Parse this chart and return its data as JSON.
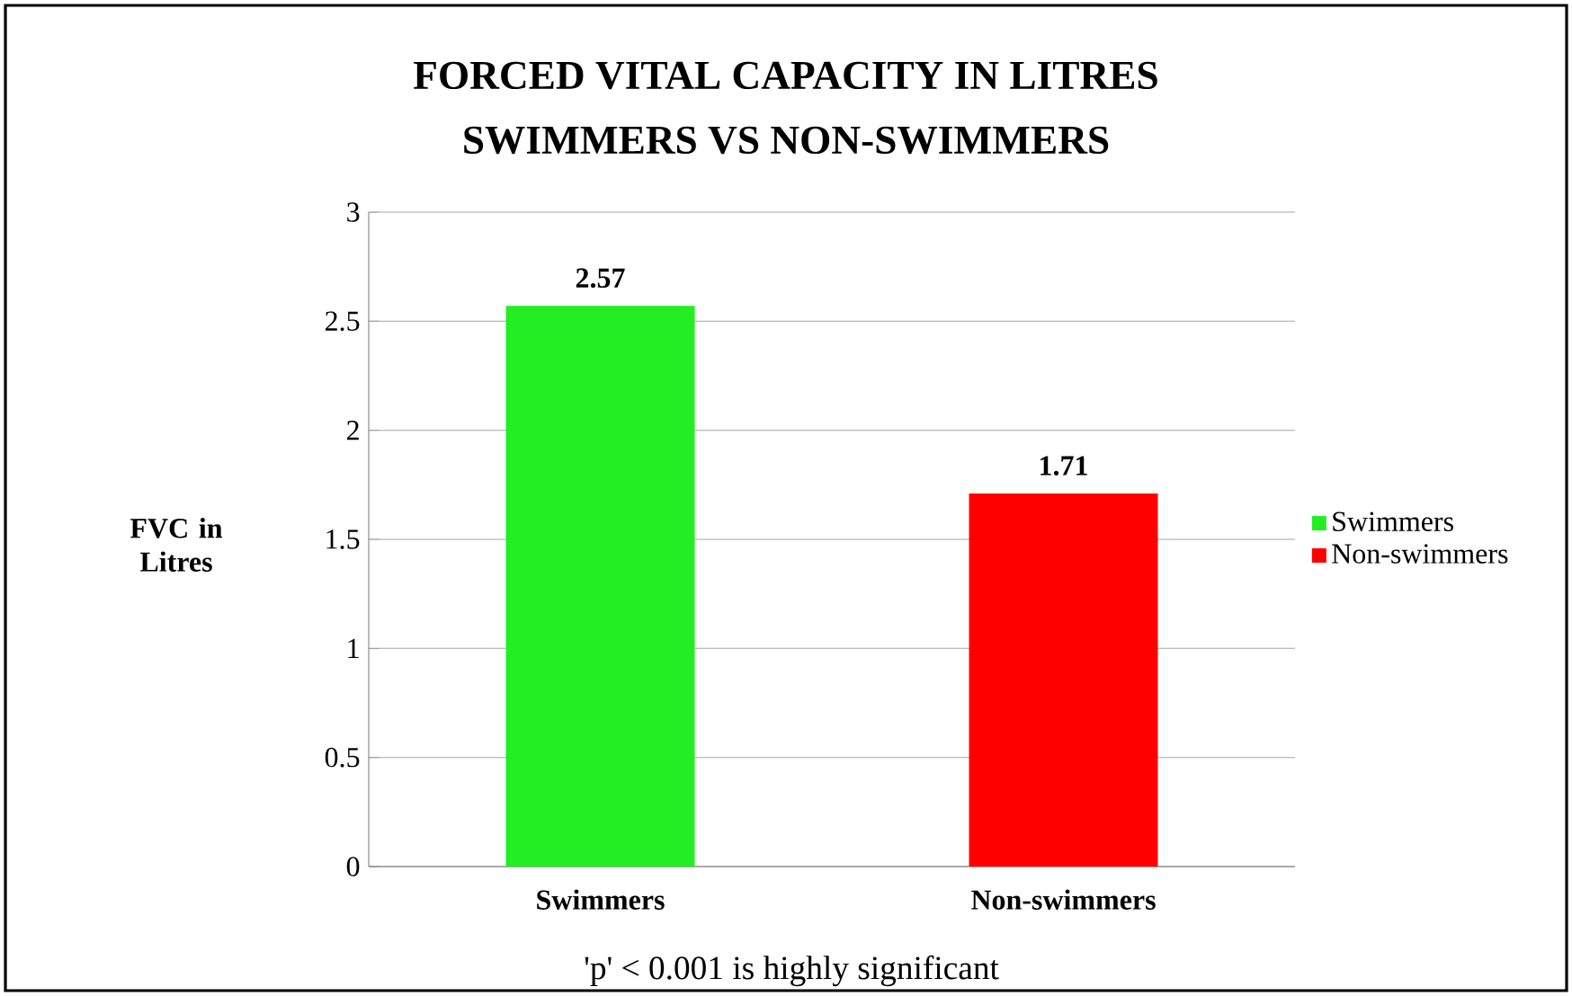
{
  "chart_data": {
    "type": "bar",
    "title": "FORCED VITAL CAPACITY IN LITRES",
    "subtitle": "SWIMMERS VS NON-SWIMMERS",
    "ylabel": "FVC in Litres",
    "categories": [
      "Swimmers",
      "Non-swimmers"
    ],
    "series": [
      {
        "name": "Swimmers",
        "color": "#22ee22",
        "values": [
          2.57,
          null
        ]
      },
      {
        "name": "Non-swimmers",
        "color": "#ff0000",
        "values": [
          null,
          1.71
        ]
      }
    ],
    "ylim": [
      0,
      3
    ],
    "yticks": [
      0,
      0.5,
      1,
      1.5,
      2,
      2.5,
      3
    ],
    "grid": "y",
    "legend": "right",
    "data_labels": true,
    "annotations": [
      "'p' < 0.001 is highly significant"
    ]
  }
}
